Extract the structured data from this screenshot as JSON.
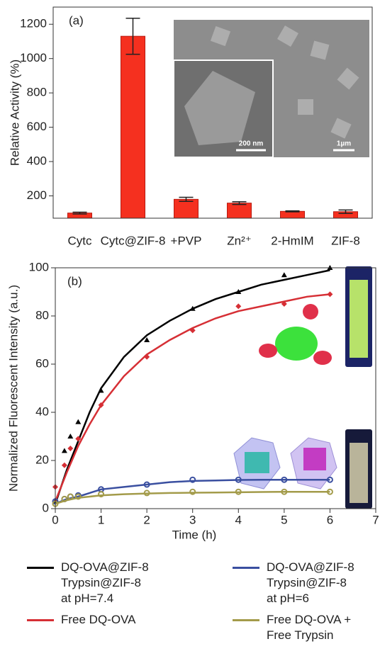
{
  "chart_data": [
    {
      "type": "bar",
      "panel_label": "(a)",
      "y_label": "Relative Activity (%)",
      "categories": [
        "Cytc",
        "Cytc@ZIF-8",
        "+PVP",
        "Zn²⁺",
        "2-HmIM",
        "ZIF-8"
      ],
      "values": [
        100,
        1130,
        180,
        158,
        110,
        108
      ],
      "errors": [
        5,
        105,
        12,
        8,
        3,
        10
      ],
      "color": "#f5301f",
      "ylim": [
        70,
        1300
      ],
      "yticks": [
        200,
        400,
        600,
        800,
        1000,
        1200
      ],
      "annotations": [
        "200 nm",
        "1µm"
      ]
    },
    {
      "type": "line",
      "panel_label": "(b)",
      "x_label": "Time (h)",
      "y_label": "Normalized Fluorescent Intensity (a.u.)",
      "x": [
        0,
        0.2,
        0.33,
        0.5,
        1,
        2,
        3,
        4,
        5,
        6
      ],
      "fit_x": [
        0,
        0.25,
        0.5,
        0.75,
        1,
        1.5,
        2,
        2.5,
        3,
        3.5,
        4,
        4.5,
        5,
        5.5,
        6
      ],
      "xlim": [
        0,
        7
      ],
      "xticks": [
        0,
        1,
        2,
        3,
        4,
        5,
        6,
        7
      ],
      "ylim": [
        0,
        100
      ],
      "yticks": [
        0,
        20,
        40,
        60,
        80,
        100
      ],
      "series": [
        {
          "name": "DQ-OVA@ZIF-8\nTrypsin@ZIF-8\nat pH=7.4",
          "color": "#000000",
          "marker": "triangle",
          "values": [
            3,
            24,
            30,
            36,
            49,
            70,
            83,
            90,
            97,
            100
          ],
          "fit": [
            2,
            16,
            28,
            40,
            50,
            63,
            72,
            78,
            83,
            87,
            90,
            93,
            95,
            97,
            99
          ]
        },
        {
          "name": "Free DQ-OVA",
          "color": "#d62f35",
          "marker": "diamond",
          "values": [
            9,
            18,
            25,
            29,
            43,
            63,
            74,
            84,
            85,
            89
          ],
          "fit": [
            3,
            15,
            26,
            35,
            43,
            55,
            64,
            70,
            75,
            79,
            82,
            84,
            86,
            88,
            89
          ]
        },
        {
          "name": "DQ-OVA@ZIF-8\nTrypsin@ZIF-8\nat pH=6",
          "color": "#3a4fa0",
          "marker": "circle-open",
          "values": [
            3,
            4,
            5,
            5.5,
            8,
            10,
            12,
            12,
            12,
            12
          ],
          "fit": [
            2,
            4,
            5,
            6.5,
            8,
            9,
            10,
            11,
            11.5,
            11.7,
            11.9,
            12,
            12,
            12,
            12
          ]
        },
        {
          "name": "Free DQ-OVA +\nFree Trypsin",
          "color": "#a39b4a",
          "marker": "circle-open",
          "values": [
            2,
            4,
            5,
            5,
            6,
            6.5,
            7,
            7,
            7,
            7
          ],
          "fit": [
            2,
            3.5,
            4.5,
            5,
            5.5,
            6,
            6.3,
            6.5,
            6.6,
            6.7,
            6.8,
            6.9,
            7,
            7,
            7
          ]
        }
      ]
    }
  ]
}
